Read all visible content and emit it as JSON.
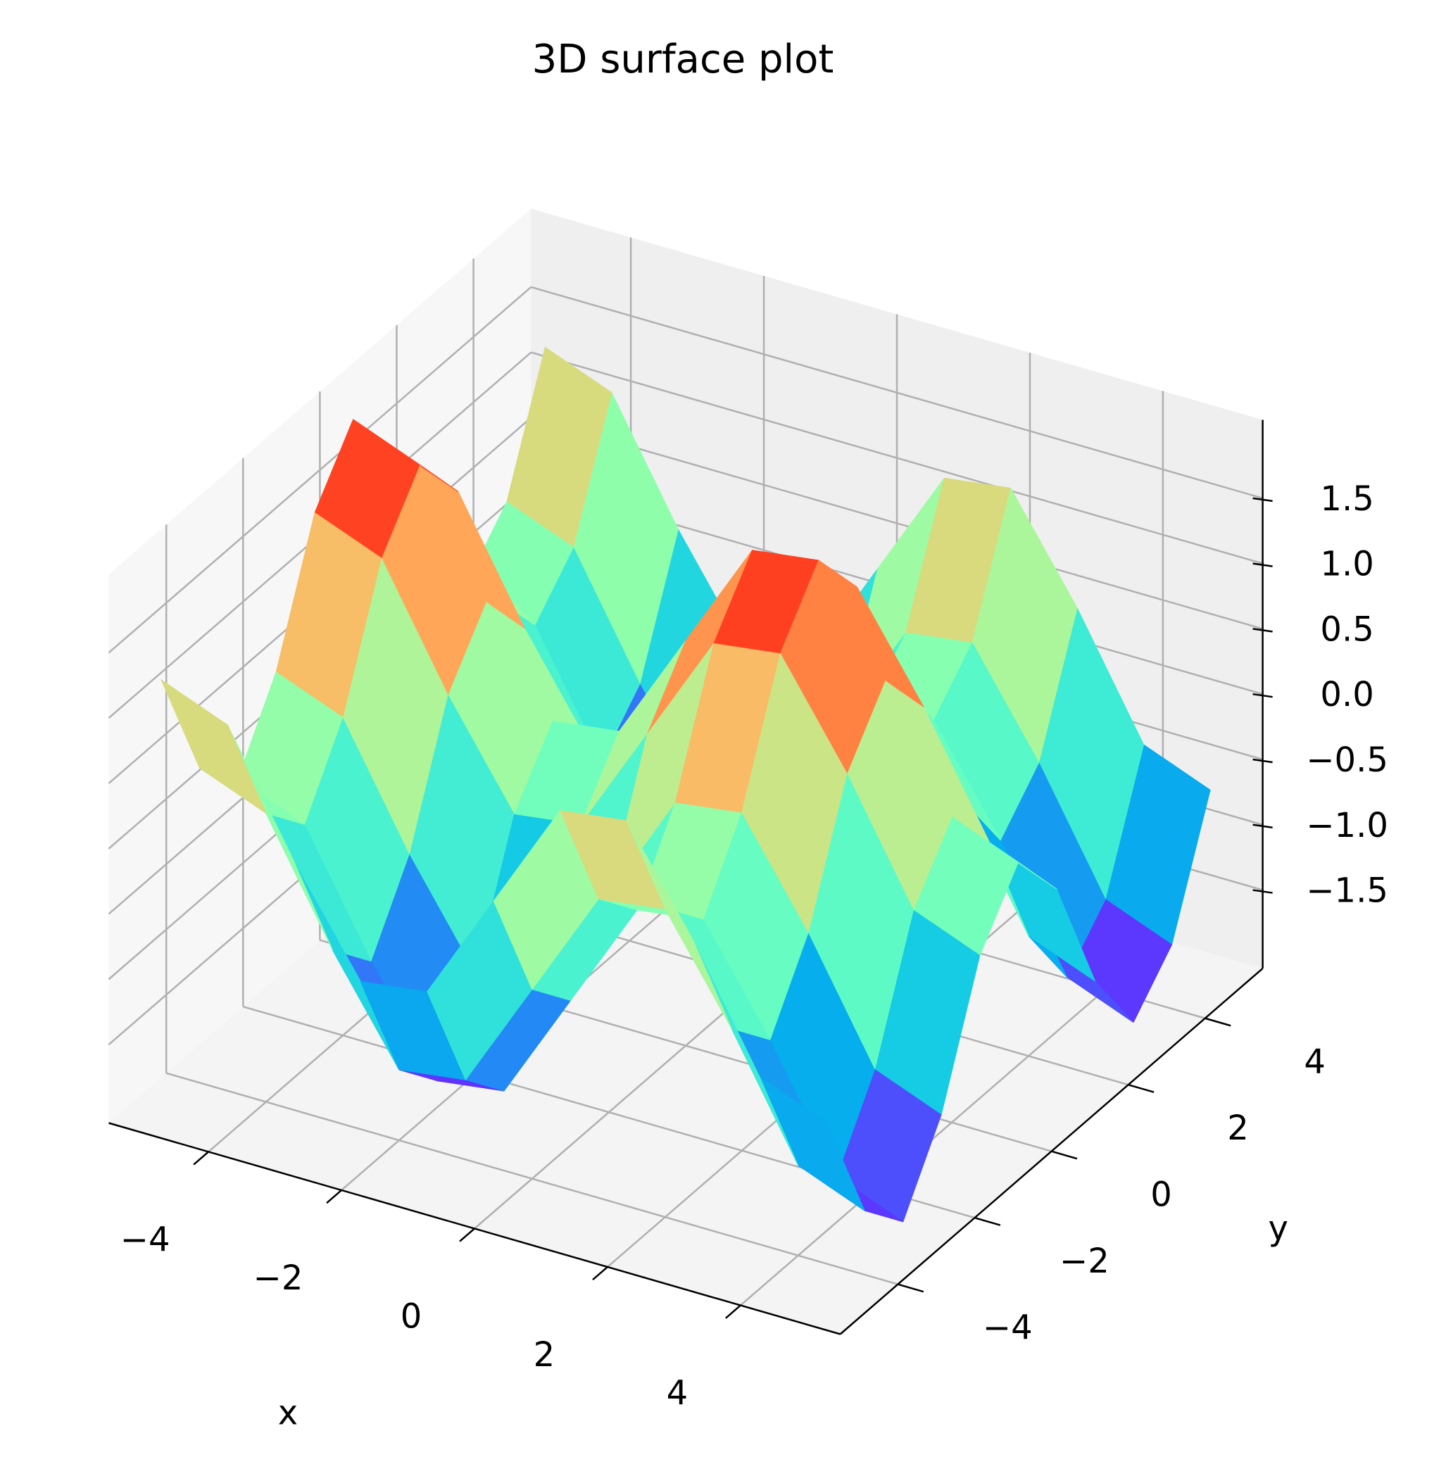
{
  "chart_data": {
    "type": "surface",
    "title": "3D surface plot",
    "x_label": "x",
    "y_label": "y",
    "colormap": "rainbow",
    "x": [
      -5,
      -4,
      -3,
      -2,
      -1,
      0,
      1,
      2,
      3,
      4,
      5
    ],
    "y": [
      -5,
      -4,
      -3,
      -2,
      -1,
      0,
      1,
      2,
      3,
      4,
      5
    ],
    "z": [
      [
        1.24,
        1.04,
        0.14,
        -0.63,
        -0.56,
        0.28,
        1.12,
        1.19,
        0.42,
        -0.48,
        -0.68
      ],
      [
        0.31,
        0.11,
        -0.79,
        -1.56,
        -1.49,
        -0.65,
        0.19,
        0.26,
        -0.51,
        -1.41,
        -1.61
      ],
      [
        -0.03,
        -0.23,
        -1.13,
        -1.9,
        -1.83,
        -0.99,
        -0.15,
        -0.08,
        -0.85,
        -1.75,
        -1.95
      ],
      [
        0.54,
        0.34,
        -0.56,
        -1.33,
        -1.26,
        -0.42,
        0.42,
        0.49,
        -0.28,
        -1.18,
        -1.38
      ],
      [
        1.5,
        1.3,
        0.4,
        -0.37,
        -0.3,
        0.54,
        1.38,
        1.45,
        0.68,
        -0.22,
        -0.42
      ],
      [
        1.96,
        1.76,
        0.86,
        0.09,
        0.16,
        1,
        1.84,
        1.91,
        1.14,
        0.24,
        0.04
      ],
      [
        1.5,
        1.3,
        0.4,
        -0.37,
        -0.3,
        0.54,
        1.38,
        1.45,
        0.68,
        -0.22,
        -0.42
      ],
      [
        0.54,
        0.34,
        -0.56,
        -1.33,
        -1.26,
        -0.42,
        0.42,
        0.49,
        -0.28,
        -1.18,
        -1.38
      ],
      [
        -0.03,
        -0.23,
        -1.13,
        -1.9,
        -1.83,
        -0.99,
        -0.15,
        -0.08,
        -0.85,
        -1.75,
        -1.95
      ],
      [
        0.31,
        0.11,
        -0.79,
        -1.56,
        -1.49,
        -0.65,
        0.19,
        0.26,
        -0.51,
        -1.41,
        -1.61
      ],
      [
        1.24,
        1.04,
        0.14,
        -0.63,
        -0.56,
        0.28,
        1.12,
        1.19,
        0.42,
        -0.48,
        -0.68
      ]
    ],
    "xlim": [
      -5.5,
      5.5
    ],
    "ylim": [
      -5.5,
      5.5
    ],
    "zlim": [
      -2.1,
      2.1
    ],
    "xticks": [
      {
        "value": -4,
        "label": "−4"
      },
      {
        "value": -2,
        "label": "−2"
      },
      0,
      2,
      4
    ],
    "yticks": [
      {
        "value": -4,
        "label": "−4"
      },
      {
        "value": -2,
        "label": "−2"
      },
      0,
      2,
      4
    ],
    "zticks": [
      {
        "value": -1.5,
        "label": "−1.5"
      },
      {
        "value": -1,
        "label": "−1.0"
      },
      {
        "value": -0.5,
        "label": "−0.5"
      },
      {
        "value": 0,
        "label": "0.0"
      },
      0.5,
      {
        "value": 1,
        "label": "1.0"
      },
      1.5
    ],
    "grid": true
  }
}
